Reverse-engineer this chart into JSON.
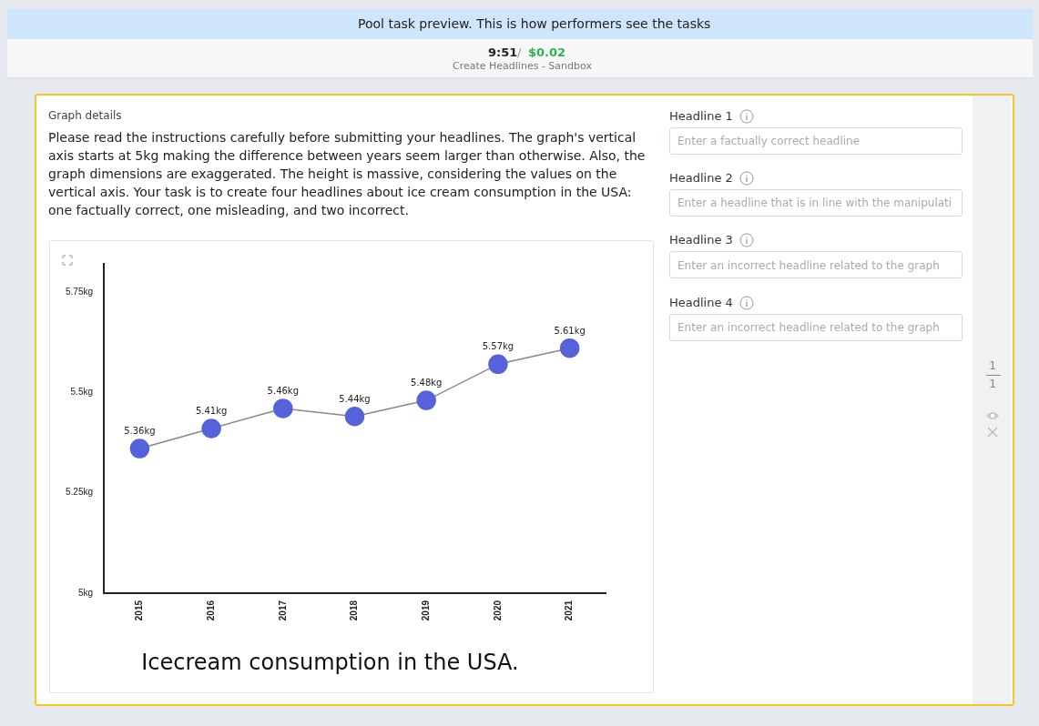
{
  "chart_data": {
    "type": "line",
    "title": "Icecream consumption in the USA.",
    "categories": [
      "2015",
      "2016",
      "2017",
      "2018",
      "2019",
      "2020",
      "2021"
    ],
    "series": [
      {
        "color": "#5562d9",
        "values": [
          5.36,
          5.41,
          5.46,
          5.44,
          5.48,
          5.57,
          5.61
        ],
        "value_labels": [
          "5.36kg",
          "5.41kg",
          "5.46kg",
          "5.44kg",
          "5.48kg",
          "5.57kg",
          "5.61kg"
        ]
      }
    ],
    "ylim": [
      5,
      5.82
    ],
    "yticks": [
      {
        "value": 5,
        "label": "5kg"
      },
      {
        "value": 5.25,
        "label": "5.25kg"
      },
      {
        "value": 5.5,
        "label": "5.5kg"
      },
      {
        "value": 5.75,
        "label": "5.75kg"
      }
    ],
    "grid": false,
    "legend": false,
    "marker": "circle",
    "line_style": "solid",
    "annotations": [
      "Pool task preview. This is how performers see the tasks",
      "9:51",
      "/",
      "$0.02",
      "Create Headlines - Sandbox",
      "Graph details",
      "Please read the instructions carefully before submitting your headlines. The graph's vertical axis starts at 5kg making the difference between years seem larger than otherwise. Also, the graph dimensions are exaggerated. The height is massive, considering the values on the vertical axis. Your task is to create four headlines about ice cream consumption in the USA: one factually correct, one misleading, and two incorrect.",
      "Headline 1",
      "Enter a factually correct headline",
      "Headline 2",
      "Enter a headline that is in line with the manipulati",
      "Headline 3",
      "Enter an incorrect headline related to the graph",
      "Headline 4",
      "Enter an incorrect headline related to the graph",
      "1",
      "1"
    ]
  }
}
